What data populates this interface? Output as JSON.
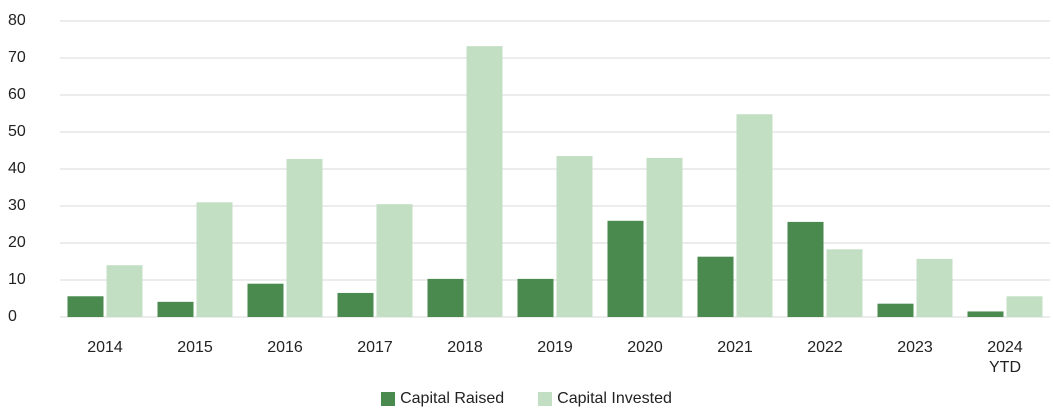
{
  "chart_data": {
    "type": "bar",
    "categories": [
      "2014",
      "2015",
      "2016",
      "2017",
      "2018",
      "2019",
      "2020",
      "2021",
      "2022",
      "2023",
      "2024 YTD"
    ],
    "series": [
      {
        "name": "Capital Raised",
        "color": "#4a8a4e",
        "values": [
          5.6,
          4.1,
          9,
          6.5,
          10.3,
          10.3,
          26,
          16.3,
          25.7,
          3.6,
          1.5
        ]
      },
      {
        "name": "Capital Invested",
        "color": "#c2dfc4",
        "values": [
          14,
          31,
          42.7,
          30.5,
          73.2,
          43.5,
          43,
          54.8,
          18.3,
          15.7,
          5.6
        ]
      }
    ],
    "ylim": [
      0,
      80
    ],
    "yticks": [
      0,
      10,
      20,
      30,
      40,
      50,
      60,
      70,
      80
    ],
    "grid": true,
    "legend": "bottom"
  }
}
